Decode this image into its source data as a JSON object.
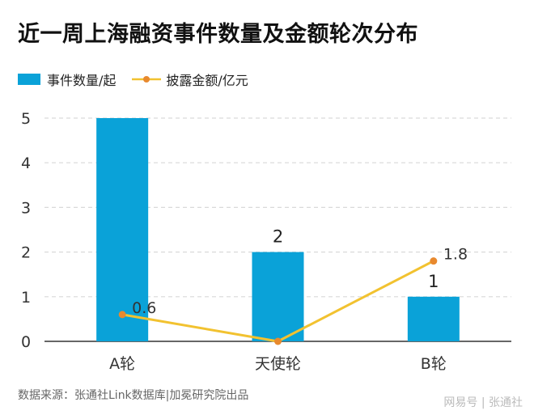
{
  "title": "近一周上海融资事件数量及金额轮次分布",
  "source": "数据来源：张通社Link数据库|加冕研究院出品",
  "watermark": "网易号 | 张通社",
  "colors": {
    "bar": "#0aa2d8",
    "line": "#f2c230",
    "line_marker": "#e8892e",
    "grid": "#d9d9d9",
    "axis": "#333333"
  },
  "chart_data": {
    "type": "bar",
    "categories": [
      "A轮",
      "天使轮",
      "B轮"
    ],
    "series": [
      {
        "name": "事件数量/起",
        "type": "bar",
        "values": [
          5,
          2,
          1
        ],
        "data_labels": [
          "",
          "2",
          "1"
        ]
      },
      {
        "name": "披露金额/亿元",
        "type": "line",
        "values": [
          0.6,
          0,
          1.8
        ],
        "data_labels": [
          "0.6",
          "",
          "1.8"
        ]
      }
    ],
    "yticks": [
      "0",
      "1",
      "2",
      "3",
      "4",
      "5"
    ],
    "ylim": [
      0,
      5
    ],
    "grid": true,
    "legend_position": "top-left"
  }
}
